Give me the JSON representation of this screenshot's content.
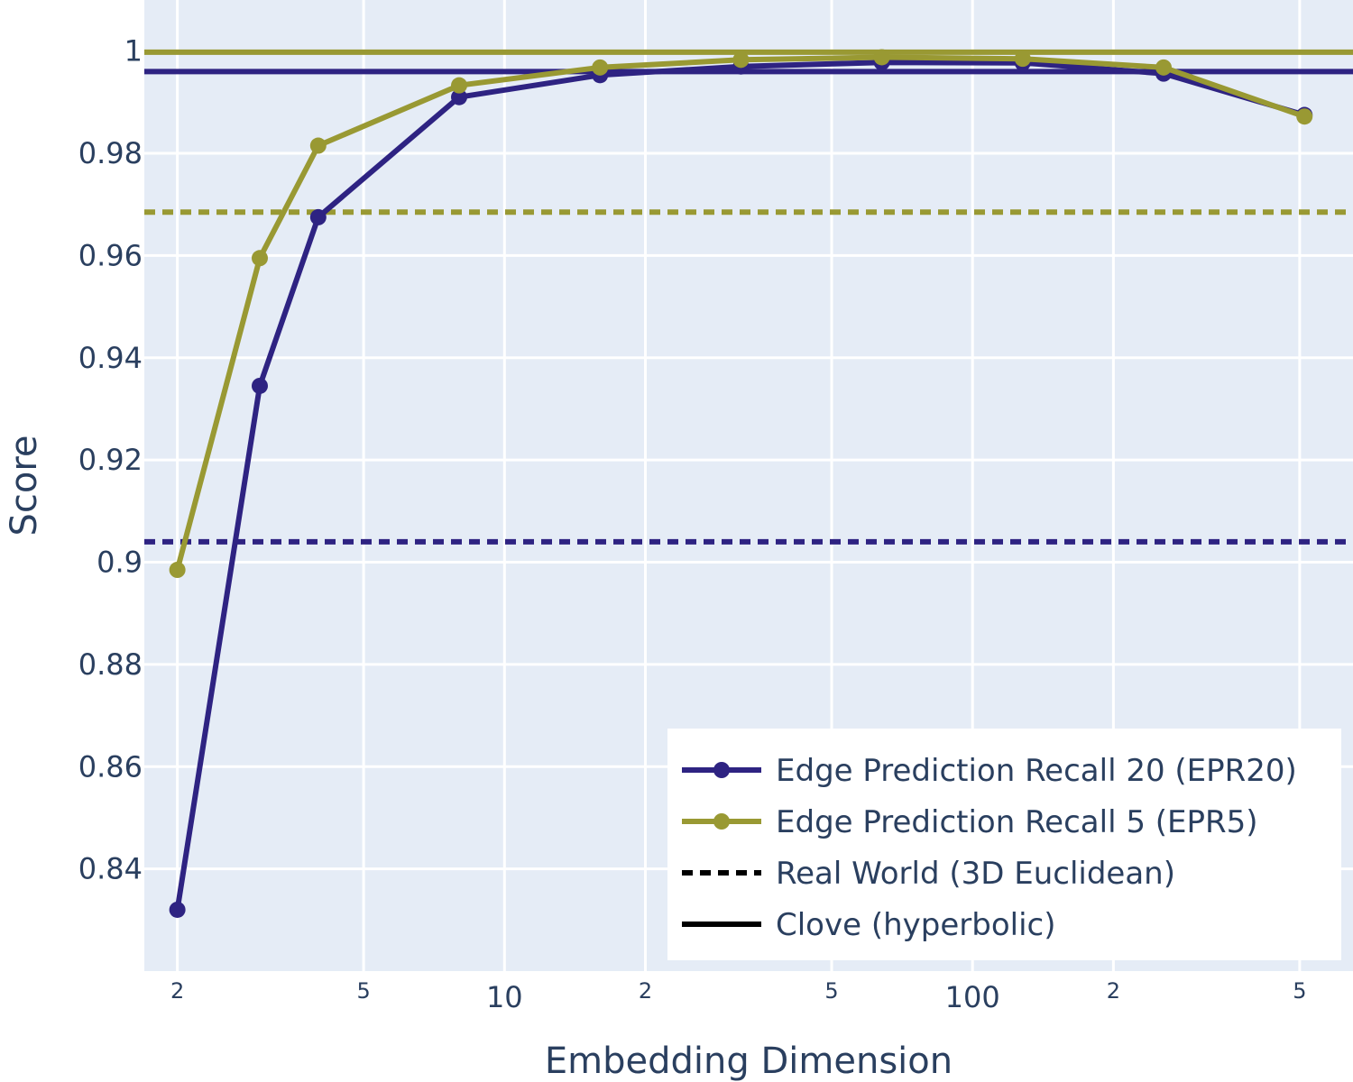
{
  "chart_data": {
    "type": "line",
    "xlabel": "Embedding Dimension",
    "ylabel": "Score",
    "x_scale": "log",
    "xlim": [
      1.7,
      650
    ],
    "ylim": [
      0.82,
      1.01
    ],
    "grid": true,
    "legend_position": "bottom-right",
    "x": [
      2,
      3,
      4,
      8,
      16,
      32,
      64,
      128,
      256,
      512
    ],
    "x_major_ticks": [
      {
        "value": 10,
        "label": "10"
      },
      {
        "value": 100,
        "label": "100"
      }
    ],
    "x_minor_ticks": [
      {
        "value": 2,
        "label": "2"
      },
      {
        "value": 5,
        "label": "5"
      },
      {
        "value": 20,
        "label": "2"
      },
      {
        "value": 50,
        "label": "5"
      },
      {
        "value": 200,
        "label": "2"
      },
      {
        "value": 500,
        "label": "5"
      }
    ],
    "y_ticks": [
      {
        "value": 0.84,
        "label": "0.84"
      },
      {
        "value": 0.86,
        "label": "0.86"
      },
      {
        "value": 0.88,
        "label": "0.88"
      },
      {
        "value": 0.9,
        "label": "0.9"
      },
      {
        "value": 0.92,
        "label": "0.92"
      },
      {
        "value": 0.94,
        "label": "0.94"
      },
      {
        "value": 0.96,
        "label": "0.96"
      },
      {
        "value": 0.98,
        "label": "0.98"
      },
      {
        "value": 1.0,
        "label": "1"
      }
    ],
    "series": [
      {
        "name": "Edge Prediction Recall 20 (EPR20)",
        "color": "#2e2382",
        "values": [
          0.832,
          0.9345,
          0.9675,
          0.991,
          0.9953,
          0.997,
          0.9978,
          0.9977,
          0.9956,
          0.9875
        ]
      },
      {
        "name": "Edge Prediction Recall 5 (EPR5)",
        "color": "#999933",
        "values": [
          0.8985,
          0.9595,
          0.9815,
          0.9933,
          0.9968,
          0.9983,
          0.9988,
          0.9985,
          0.9968,
          0.9872
        ]
      }
    ],
    "reference_lines": [
      {
        "label": "Clove (hyperbolic)",
        "series_color": "#999933",
        "style": "solid",
        "value": 0.9998
      },
      {
        "label": "Clove (hyperbolic)",
        "series_color": "#2e2382",
        "style": "solid",
        "value": 0.996
      },
      {
        "label": "Real World (3D Euclidean)",
        "series_color": "#999933",
        "style": "dotted",
        "value": 0.9685
      },
      {
        "label": "Real World (3D Euclidean)",
        "series_color": "#2e2382",
        "style": "dotted",
        "value": 0.904
      }
    ],
    "legend": [
      {
        "label": "Edge Prediction Recall 20 (EPR20)",
        "kind": "line-marker",
        "color": "#2e2382"
      },
      {
        "label": "Edge Prediction Recall 5 (EPR5)",
        "kind": "line-marker",
        "color": "#999933"
      },
      {
        "label": "Real World (3D Euclidean)",
        "kind": "dotted",
        "color": "#000000"
      },
      {
        "label": "Clove (hyperbolic)",
        "kind": "solid",
        "color": "#000000"
      }
    ],
    "colors": {
      "plot_background": "#e5ecf6",
      "grid": "#ffffff",
      "text": "#2a3f5f"
    }
  }
}
